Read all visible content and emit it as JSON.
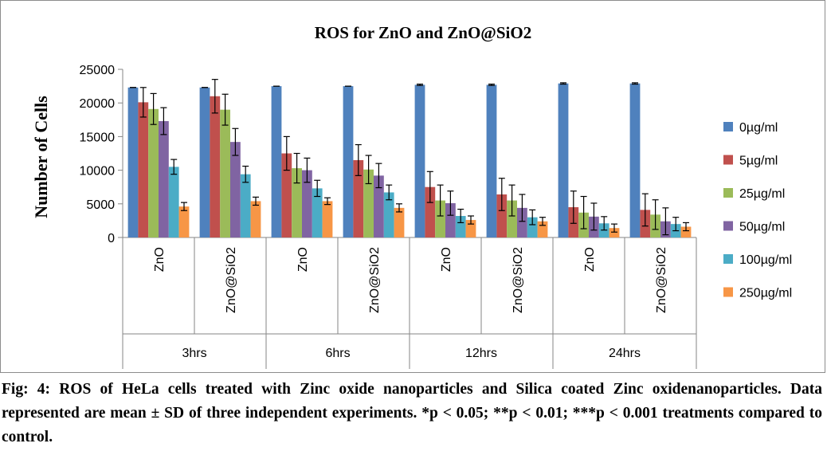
{
  "chart_data": {
    "type": "bar",
    "title": "ROS for ZnO  and ZnO@SiO2",
    "ylabel": "Number  of Cells",
    "xlabel": "",
    "ylim": [
      0,
      25000
    ],
    "yticks": [
      "0",
      "5000",
      "10000",
      "15000",
      "20000",
      "25000"
    ],
    "ytick_values": [
      0,
      5000,
      10000,
      15000,
      20000,
      25000
    ],
    "grid": false,
    "legend_position": "right",
    "groups": [
      "3hrs",
      "6hrs",
      "12hrs",
      "24hrs"
    ],
    "categories": [
      "ZnO",
      "ZnO@SiO2",
      "ZnO",
      "ZnO@SiO2",
      "ZnO",
      "ZnO@SiO2",
      "ZnO",
      "ZnO@SiO2"
    ],
    "series": [
      {
        "name": "0µg/ml",
        "color": "#4f81bd",
        "values": [
          22300,
          22300,
          22500,
          22500,
          22700,
          22700,
          22900,
          22900
        ],
        "errors": [
          0,
          0,
          0,
          0,
          100,
          100,
          100,
          100
        ]
      },
      {
        "name": "5µg/ml",
        "color": "#c0504d",
        "values": [
          20100,
          21000,
          12500,
          11500,
          7500,
          6400,
          4500,
          4100
        ],
        "errors": [
          2200,
          2500,
          2500,
          2300,
          2300,
          2400,
          2400,
          2400
        ]
      },
      {
        "name": "25µg/ml",
        "color": "#9bbb59",
        "values": [
          19100,
          19000,
          10300,
          10100,
          5500,
          5500,
          3700,
          3400
        ],
        "errors": [
          2300,
          2300,
          2200,
          2100,
          2300,
          2300,
          2400,
          2200
        ]
      },
      {
        "name": "50µg/ml",
        "color": "#8064a2",
        "values": [
          17300,
          14200,
          10000,
          9200,
          5100,
          4400,
          3100,
          2400
        ],
        "errors": [
          2000,
          2000,
          1800,
          1800,
          1800,
          2000,
          2000,
          2000
        ]
      },
      {
        "name": "100µg/ml",
        "color": "#4bacc6",
        "values": [
          10500,
          9400,
          7300,
          6700,
          3200,
          3000,
          2100,
          2000
        ],
        "errors": [
          1100,
          1200,
          1200,
          1100,
          1000,
          1100,
          1000,
          1000
        ]
      },
      {
        "name": "250µg/ml",
        "color": "#f79646",
        "values": [
          4600,
          5400,
          5400,
          4400,
          2600,
          2400,
          1400,
          1600
        ],
        "errors": [
          600,
          600,
          500,
          600,
          600,
          600,
          600,
          600
        ]
      }
    ]
  },
  "caption": {
    "text": "Fig: 4: ROS of HeLa cells treated with Zinc oxide nanoparticles and Silica coated Zinc oxidenanoparticles. Data represented are mean ± SD of three independent experiments. *p < 0.05; **p < 0.01; ***p < 0.001 treatments compared to control."
  }
}
